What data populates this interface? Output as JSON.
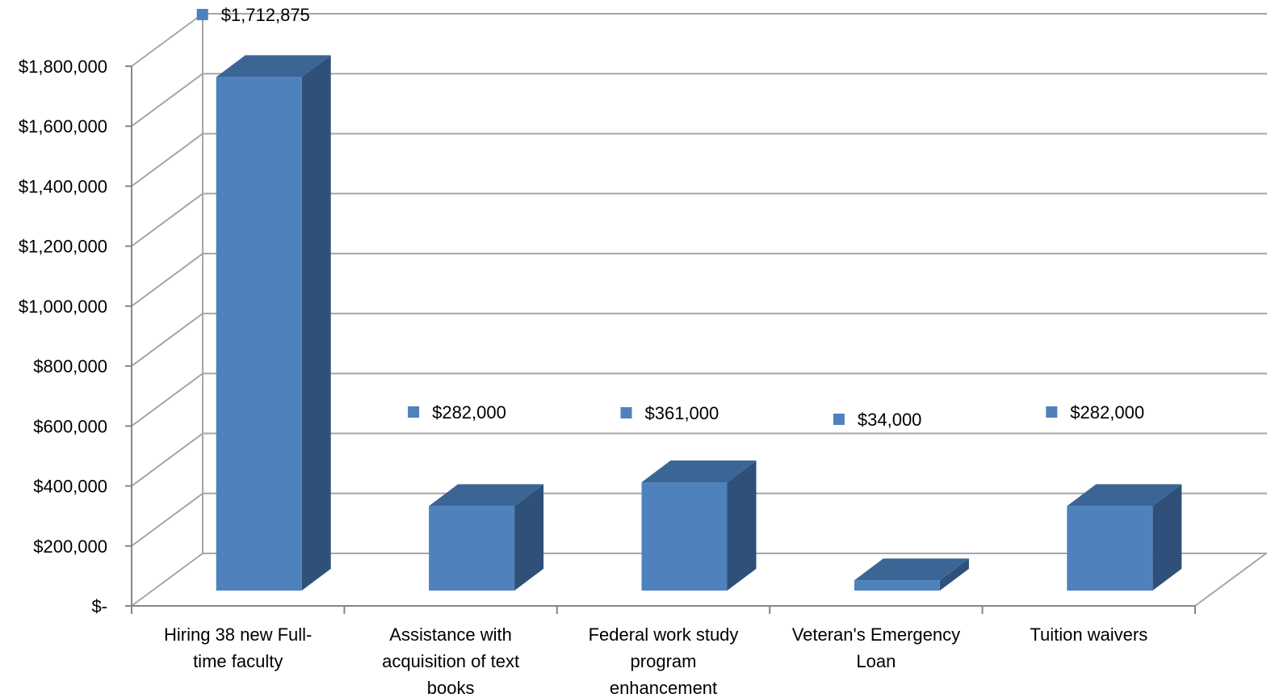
{
  "chart_data": {
    "type": "bar",
    "style": "3d-column",
    "title": "",
    "xlabel": "",
    "ylabel": "",
    "categories": [
      [
        "Hiring 38 new Full-",
        "time faculty"
      ],
      [
        "Assistance with",
        "acquisition of text",
        "books"
      ],
      [
        "Federal work study",
        "program",
        "enhancement"
      ],
      [
        "Veteran's Emergency",
        "Loan"
      ],
      [
        "Tuition waivers"
      ]
    ],
    "values": [
      1712875,
      282000,
      361000,
      34000,
      282000
    ],
    "data_labels": [
      "$1,712,875",
      "$282,000",
      "$361,000",
      "$34,000",
      "$282,000"
    ],
    "ylim": [
      0,
      1800000
    ],
    "ytick_step": 200000,
    "ytick_labels": [
      "$-",
      "$200,000",
      "$400,000",
      "$600,000",
      "$800,000",
      "$1,000,000",
      "$1,200,000",
      "$1,400,000",
      "$1,600,000",
      "$1,800,000"
    ],
    "grid": true,
    "legend": "none",
    "colors": {
      "bar_front": "#4f81bd",
      "bar_top": "#3b6595",
      "bar_side": "#2f5179",
      "grid": "#a6a6a6",
      "axis": "#868686",
      "label_marker": "#4f81bd"
    }
  }
}
